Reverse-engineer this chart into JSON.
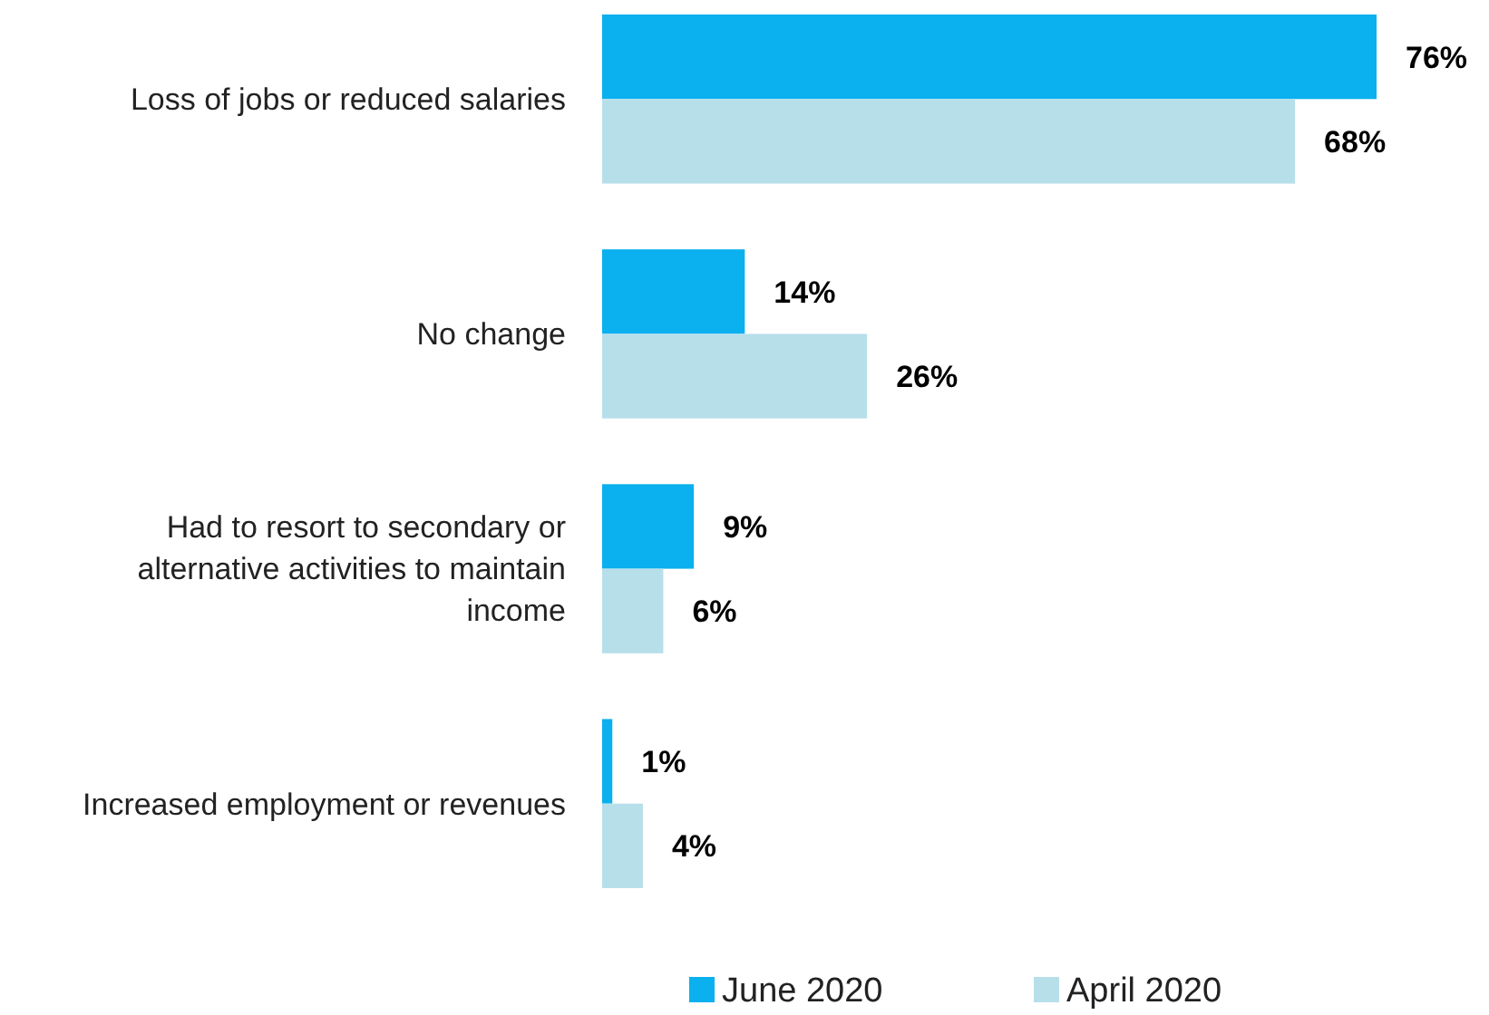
{
  "chart_data": {
    "type": "bar",
    "orientation": "horizontal",
    "categories": [
      "Loss of jobs or reduced salaries",
      "No change",
      "Had to resort to secondary or alternative activities to maintain income",
      "Increased employment or revenues"
    ],
    "series": [
      {
        "name": "June 2020",
        "color": "#0bb0ee",
        "values": [
          76,
          14,
          9,
          1
        ],
        "value_labels": [
          "76%",
          "14%",
          "9%",
          "1%"
        ]
      },
      {
        "name": "April 2020",
        "color": "#b7dfea",
        "values": [
          68,
          26,
          6,
          4
        ],
        "value_labels": [
          "68%",
          "26%",
          "6%",
          "4%"
        ]
      }
    ],
    "legend": "bottom"
  }
}
